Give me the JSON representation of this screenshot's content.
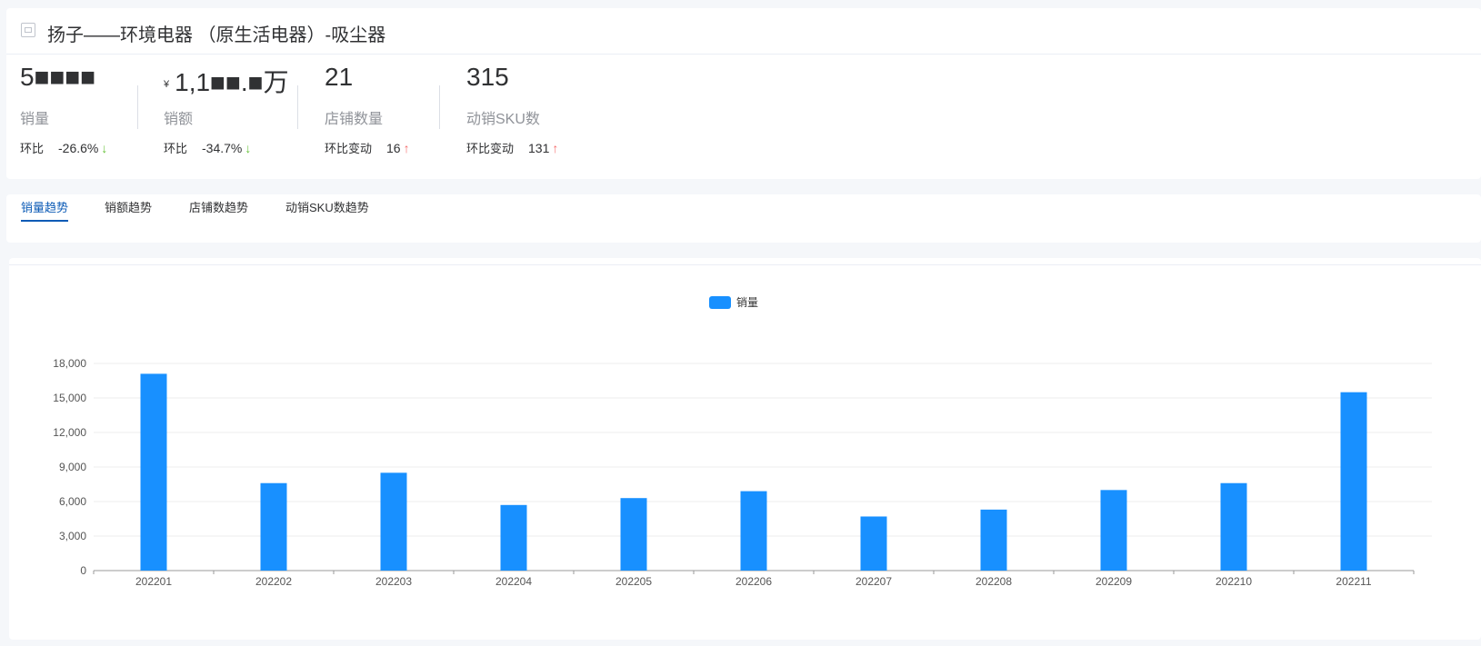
{
  "header": {
    "title": "扬子——环境电器 （原生活电器）-吸尘器",
    "title_icon": "image-icon"
  },
  "metrics": [
    {
      "value": "5■■■■",
      "currency": "",
      "label": "销量",
      "change_label": "环比",
      "change_value": "-26.6%",
      "direction": "down"
    },
    {
      "value": "1,1■■.■万",
      "currency": "¥",
      "label": "销额",
      "change_label": "环比",
      "change_value": "-34.7%",
      "direction": "down"
    },
    {
      "value": "21",
      "currency": "",
      "label": "店铺数量",
      "change_label": "环比变动",
      "change_value": "16",
      "direction": "up"
    },
    {
      "value": "315",
      "currency": "",
      "label": "动销SKU数",
      "change_label": "环比变动",
      "change_value": "131",
      "direction": "up"
    }
  ],
  "tabs": [
    {
      "label": "销量趋势",
      "active": true
    },
    {
      "label": "销额趋势",
      "active": false
    },
    {
      "label": "店铺数趋势",
      "active": false
    },
    {
      "label": "动销SKU数趋势",
      "active": false
    }
  ],
  "colors": {
    "accent": "#0c5bb6",
    "bar": "#1890ff",
    "up": "#f56c6c",
    "down": "#67c23a"
  },
  "chart_data": {
    "type": "bar",
    "legend": [
      "销量"
    ],
    "legend_position": "top-center",
    "categories": [
      "202201",
      "202202",
      "202203",
      "202204",
      "202205",
      "202206",
      "202207",
      "202208",
      "202209",
      "202210",
      "202211"
    ],
    "series": [
      {
        "name": "销量",
        "values": [
          17100,
          7600,
          8500,
          5700,
          6300,
          6900,
          4700,
          5300,
          7000,
          7600,
          15500
        ]
      }
    ],
    "yticks": [
      "0",
      "3,000",
      "6,000",
      "9,000",
      "12,000",
      "15,000",
      "18,000"
    ],
    "ylim": [
      0,
      18000
    ],
    "grid": true
  }
}
